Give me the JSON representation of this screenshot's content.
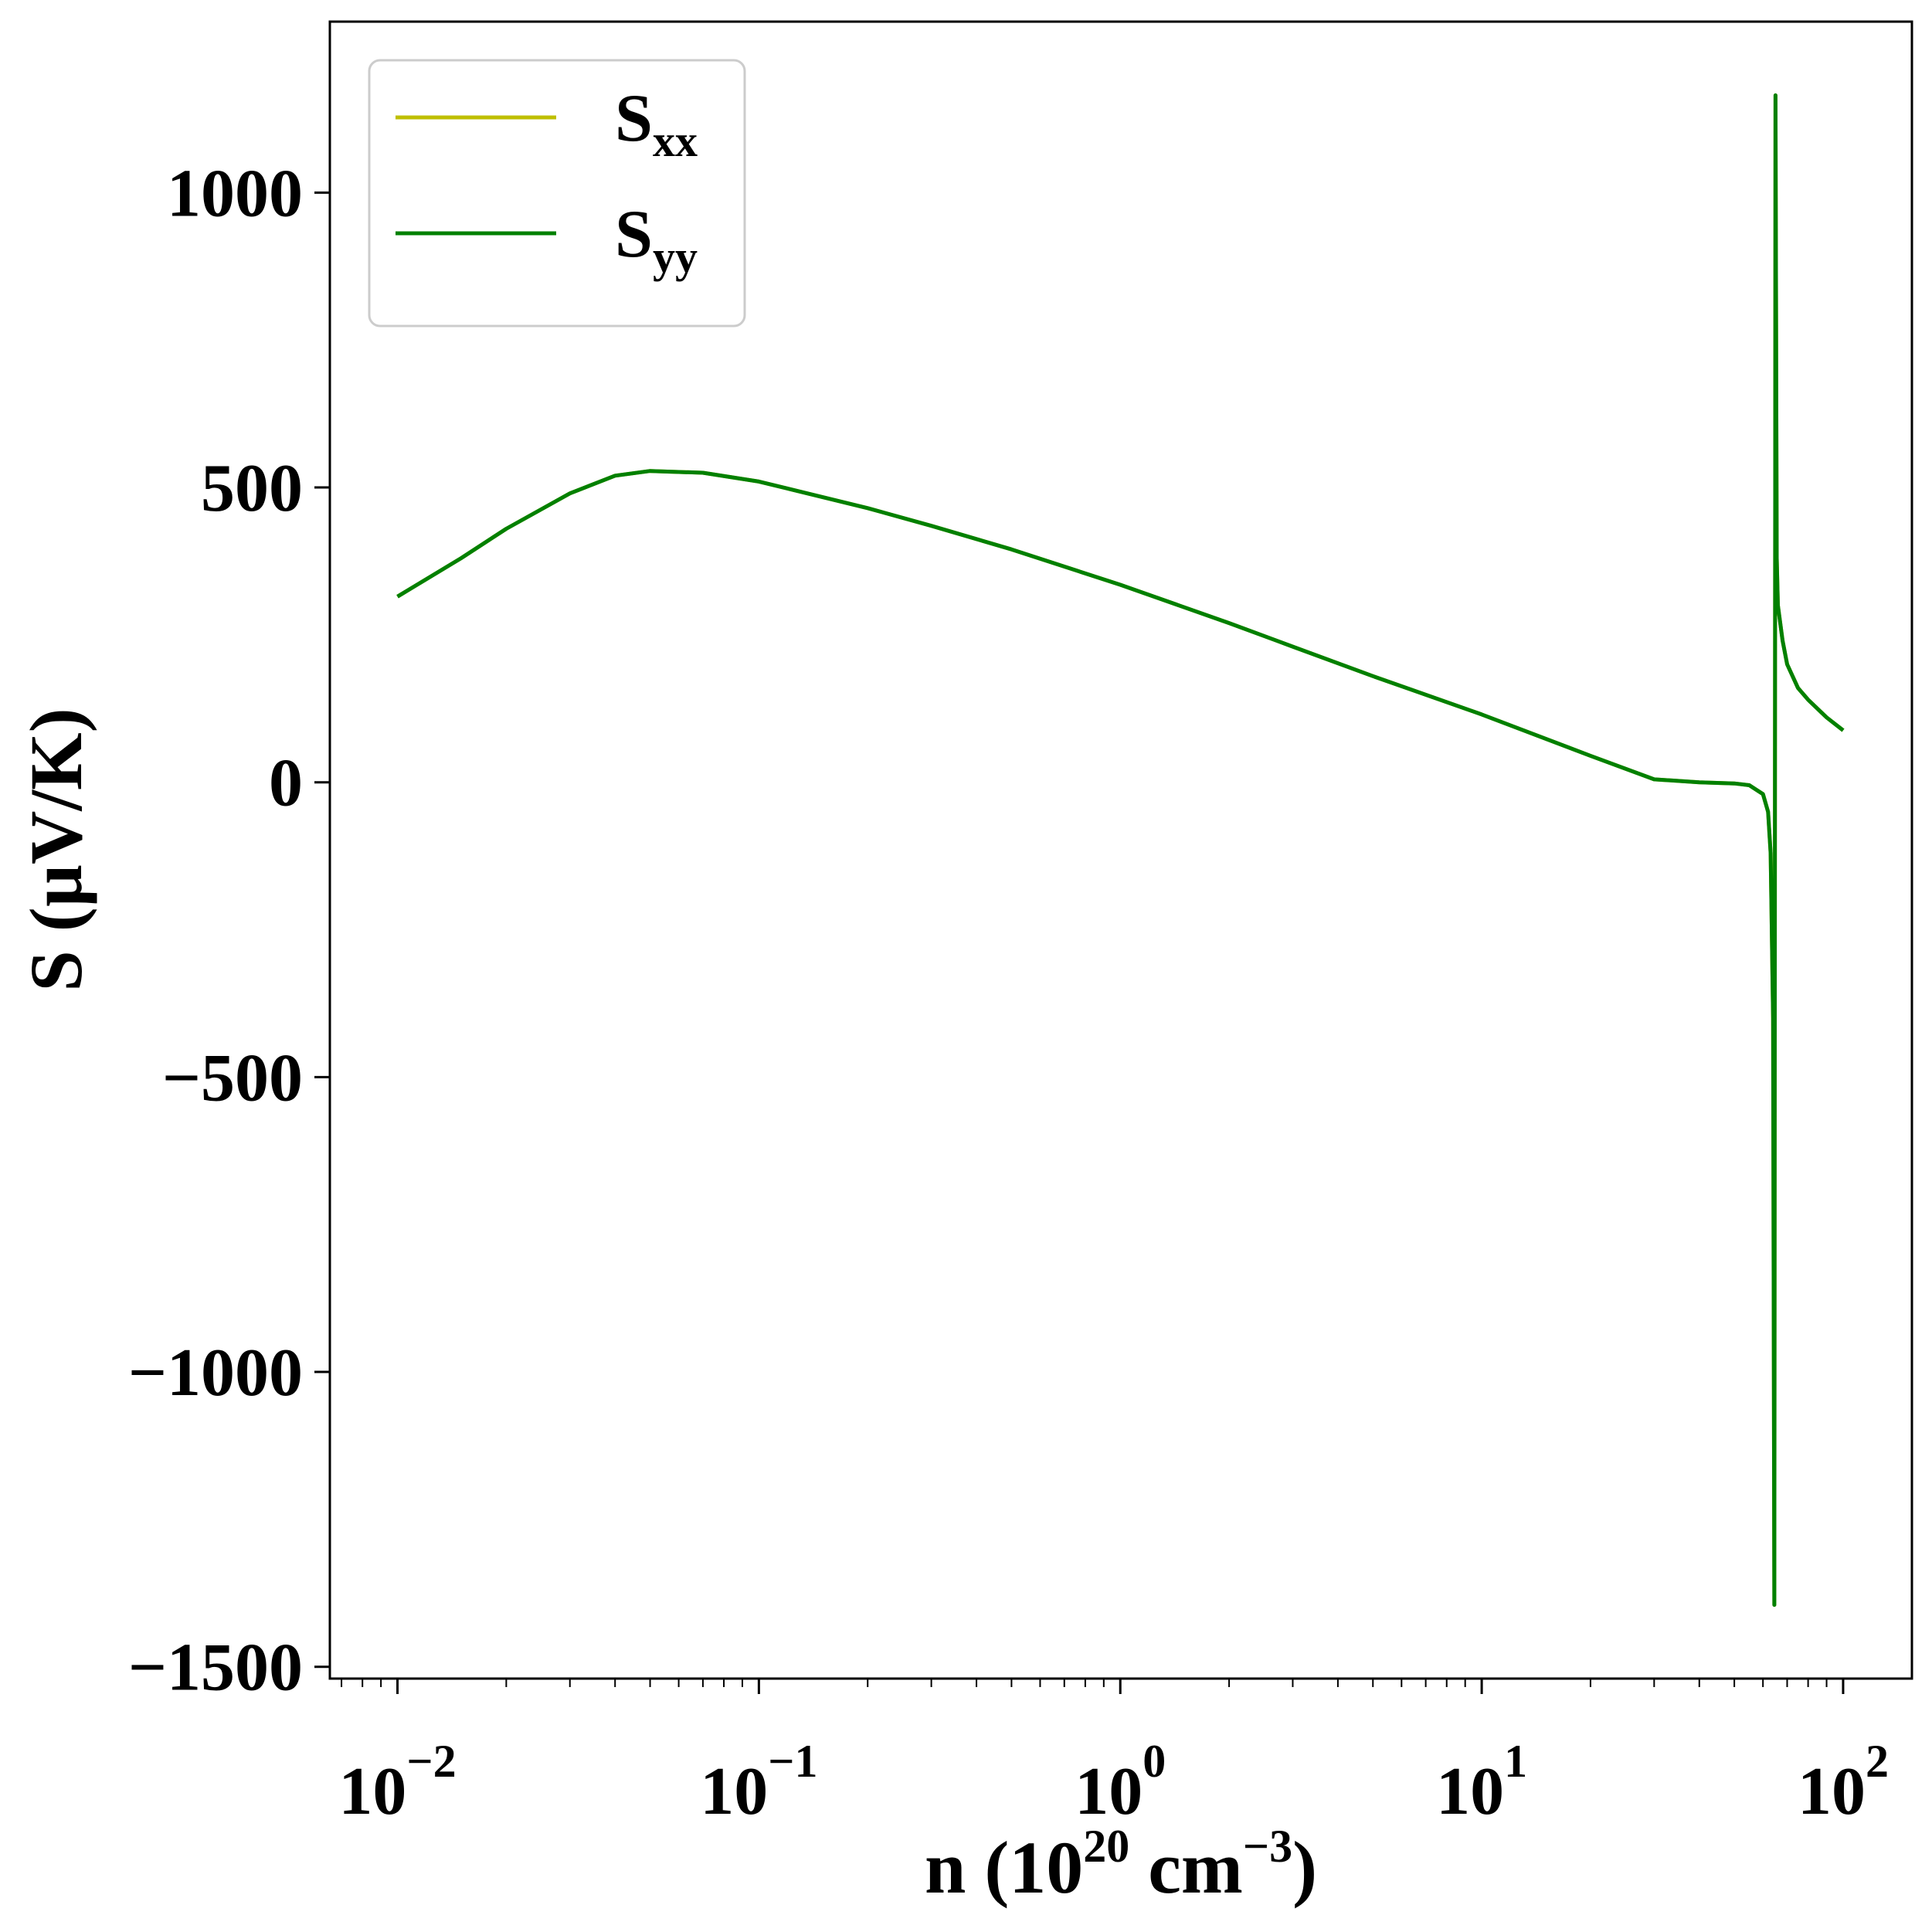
{
  "chart_data": {
    "type": "line",
    "xscale": "log",
    "xlim": [
      0.0065,
      155
    ],
    "ylim": [
      -1520,
      1290
    ],
    "xlabel": {
      "main": "n (10",
      "exp": "20",
      "unit": " cm",
      "unit_exp": "−3",
      "close": ")"
    },
    "ylabel": "S (µV/K)",
    "x_ticks": [
      {
        "value": 0.01,
        "base": "10",
        "exp": "−2"
      },
      {
        "value": 0.1,
        "base": "10",
        "exp": "−1"
      },
      {
        "value": 1,
        "base": "10",
        "exp": "0"
      },
      {
        "value": 10,
        "base": "10",
        "exp": "1"
      },
      {
        "value": 100,
        "base": "10",
        "exp": "2"
      }
    ],
    "y_ticks": [
      {
        "value": 1000,
        "label": "1000"
      },
      {
        "value": 500,
        "label": "500"
      },
      {
        "value": 0,
        "label": "0"
      },
      {
        "value": -500,
        "label": "−500"
      },
      {
        "value": -1000,
        "label": "−1000"
      },
      {
        "value": -1500,
        "label": "−1500"
      }
    ],
    "legend": {
      "position": "top-left",
      "entries": [
        {
          "base": "S",
          "sub": "xx",
          "color": "#bfbf00"
        },
        {
          "base": "S",
          "sub": "yy",
          "color": "#008000"
        }
      ]
    },
    "series": [
      {
        "name": "Sxx",
        "color": "#bfbf00",
        "x": [
          0.01,
          0.015,
          0.02,
          0.03,
          0.04,
          0.05,
          0.07,
          0.1,
          0.2,
          0.3,
          0.5,
          1,
          2,
          3,
          5,
          10,
          20,
          30,
          40,
          50,
          55,
          60,
          62,
          63,
          64,
          64.5,
          65,
          65.5,
          66,
          68,
          70,
          75,
          80,
          90,
          100
        ],
        "y": [
          315,
          380,
          430,
          490,
          520,
          528,
          525,
          510,
          465,
          435,
          395,
          335,
          270,
          230,
          180,
          115,
          45,
          5,
          0,
          -2,
          -5,
          -20,
          -50,
          -120,
          -400,
          -1395,
          1165,
          380,
          300,
          240,
          200,
          160,
          140,
          110,
          88
        ]
      },
      {
        "name": "Syy",
        "color": "#008000",
        "x": [
          0.01,
          0.015,
          0.02,
          0.03,
          0.04,
          0.05,
          0.07,
          0.1,
          0.2,
          0.3,
          0.5,
          1,
          2,
          3,
          5,
          10,
          20,
          30,
          40,
          50,
          55,
          60,
          62,
          63,
          64,
          64.5,
          65,
          65.5,
          66,
          68,
          70,
          75,
          80,
          90,
          100
        ],
        "y": [
          315,
          380,
          430,
          490,
          520,
          528,
          525,
          510,
          465,
          435,
          395,
          335,
          270,
          230,
          180,
          115,
          45,
          5,
          0,
          -2,
          -5,
          -20,
          -50,
          -120,
          -400,
          -1395,
          1165,
          380,
          300,
          240,
          200,
          160,
          140,
          110,
          88
        ]
      }
    ]
  }
}
